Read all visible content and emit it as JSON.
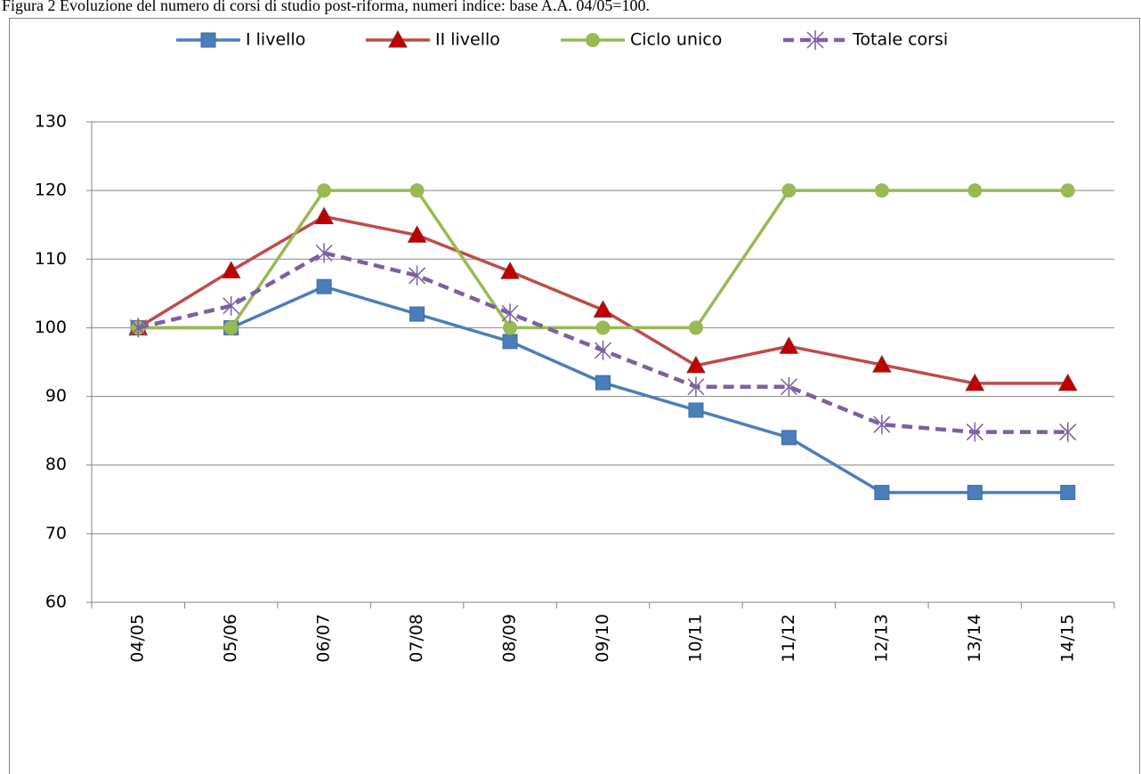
{
  "chart_data": {
    "type": "line",
    "title": "Figura 2 Evoluzione del numero di corsi di studio post-riforma, numeri indice: base A.A. 04/05=100.",
    "categories": [
      "04/05",
      "05/06",
      "06/07",
      "07/08",
      "08/09",
      "09/10",
      "10/11",
      "11/12",
      "12/13",
      "13/14",
      "14/15"
    ],
    "series": [
      {
        "name": "I livello",
        "color": "#4a7ebb",
        "marker": "square",
        "dashed": false,
        "values": [
          100,
          100,
          106,
          102,
          98,
          92,
          88,
          84,
          76,
          76,
          76
        ]
      },
      {
        "name": "II livello",
        "color": "#be4b48",
        "marker": "triangle",
        "dashed": false,
        "values": [
          100,
          108.3,
          116.2,
          113.5,
          108.2,
          102.6,
          94.5,
          97.3,
          94.6,
          91.9,
          91.9
        ]
      },
      {
        "name": "Ciclo unico",
        "color": "#98b954",
        "marker": "circle",
        "dashed": false,
        "values": [
          100,
          100,
          120,
          120,
          100,
          100,
          100,
          120,
          120,
          120,
          120
        ]
      },
      {
        "name": "Totale corsi",
        "color": "#7d60a0",
        "marker": "asterisk",
        "dashed": true,
        "values": [
          100,
          103.2,
          110.9,
          107.6,
          102.1,
          96.7,
          91.4,
          91.4,
          85.9,
          84.8,
          84.8
        ]
      }
    ],
    "ylim": [
      60,
      130
    ],
    "yticks": [
      60,
      70,
      80,
      90,
      100,
      110,
      120,
      130
    ],
    "grid": true,
    "legend": "top"
  }
}
